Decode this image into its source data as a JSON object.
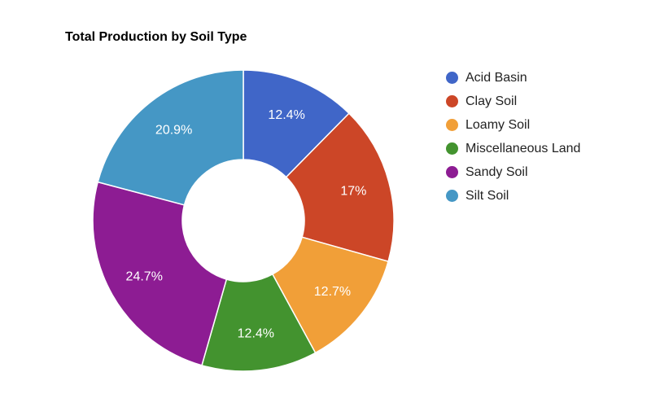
{
  "chart_data": {
    "type": "pie",
    "title": "Total Production by Soil Type",
    "donut": true,
    "legend_position": "right",
    "categories": [
      "Acid Basin",
      "Clay Soil",
      "Loamy Soil",
      "Miscellaneous Land",
      "Sandy Soil",
      "Silt Soil"
    ],
    "values": [
      12.4,
      17,
      12.7,
      12.4,
      24.7,
      20.9
    ],
    "labels": [
      "12.4%",
      "17%",
      "12.7%",
      "12.4%",
      "24.7%",
      "20.9%"
    ],
    "colors": [
      "#4066c8",
      "#cc4627",
      "#f19f38",
      "#43932f",
      "#8d1c93",
      "#4597c5"
    ]
  }
}
